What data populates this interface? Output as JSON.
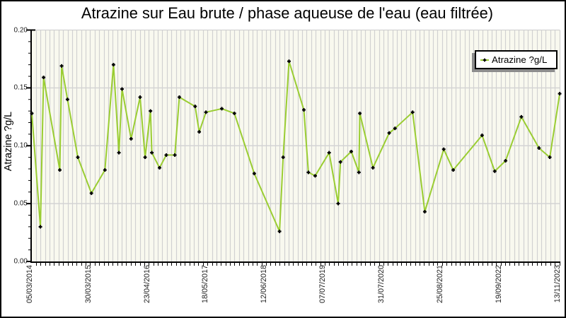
{
  "title": "Atrazine sur Eau brute / phase aqueuse de l'eau (eau filtrée)",
  "legend": {
    "label": "Atrazine ?g/L"
  },
  "colors": {
    "line": "#9acd32",
    "marker": "#000000",
    "plot_background": "#f9f9ef",
    "stripe": "#d1d1d1",
    "gridline": "#d4d4d4",
    "axis": "#000000",
    "legend_shadow": "#8c8c8c"
  },
  "chart_data": {
    "type": "line",
    "title": "Atrazine sur Eau brute / phase aqueuse de l'eau (eau filtrée)",
    "xlabel": "",
    "ylabel": "Atrazine ?g/L",
    "ylim": [
      0.0,
      0.2
    ],
    "y_major_ticks": [
      "0.00",
      "0.05",
      "0.10",
      "0.15",
      "0.20"
    ],
    "y_minor_step": 0.01,
    "grid": "horizontal major + vertical stripe per x slot",
    "legend_position": "top-right inset",
    "series_name": "Atrazine ?g/L",
    "x_slot_count": 117,
    "x_unit": "sample slot index along date axis (0 = 05/03/2014, 117 = 13/11/2023)",
    "x_tick_labels": [
      {
        "slot": 0,
        "label": "05/03/2014"
      },
      {
        "slot": 13,
        "label": "30/03/2015"
      },
      {
        "slot": 26,
        "label": "23/04/2016"
      },
      {
        "slot": 39,
        "label": "18/05/2017"
      },
      {
        "slot": 52,
        "label": "12/06/2018"
      },
      {
        "slot": 65,
        "label": "07/07/2019"
      },
      {
        "slot": 78,
        "label": "31/07/2020"
      },
      {
        "slot": 91,
        "label": "25/08/2021"
      },
      {
        "slot": 104,
        "label": "19/09/2022"
      },
      {
        "slot": 117,
        "label": "13/11/2023"
      }
    ],
    "points": [
      {
        "x": 0,
        "y": 0.128
      },
      {
        "x": 1.9,
        "y": 0.03
      },
      {
        "x": 2.6,
        "y": 0.159
      },
      {
        "x": 6.2,
        "y": 0.079
      },
      {
        "x": 6.6,
        "y": 0.169
      },
      {
        "x": 7.9,
        "y": 0.14
      },
      {
        "x": 10.2,
        "y": 0.09
      },
      {
        "x": 13.2,
        "y": 0.059
      },
      {
        "x": 16.2,
        "y": 0.079
      },
      {
        "x": 18.1,
        "y": 0.17
      },
      {
        "x": 19.3,
        "y": 0.094
      },
      {
        "x": 20,
        "y": 0.149
      },
      {
        "x": 22,
        "y": 0.106
      },
      {
        "x": 24,
        "y": 0.142
      },
      {
        "x": 25.1,
        "y": 0.09
      },
      {
        "x": 26.3,
        "y": 0.13
      },
      {
        "x": 26.6,
        "y": 0.094
      },
      {
        "x": 28.3,
        "y": 0.081
      },
      {
        "x": 29.8,
        "y": 0.092
      },
      {
        "x": 31.7,
        "y": 0.092
      },
      {
        "x": 32.7,
        "y": 0.142
      },
      {
        "x": 36.2,
        "y": 0.134
      },
      {
        "x": 37.1,
        "y": 0.112
      },
      {
        "x": 38.6,
        "y": 0.129
      },
      {
        "x": 42.1,
        "y": 0.132
      },
      {
        "x": 44.9,
        "y": 0.128
      },
      {
        "x": 49.3,
        "y": 0.076
      },
      {
        "x": 54.9,
        "y": 0.026
      },
      {
        "x": 55.7,
        "y": 0.09
      },
      {
        "x": 57,
        "y": 0.173
      },
      {
        "x": 60.3,
        "y": 0.131
      },
      {
        "x": 61.3,
        "y": 0.077
      },
      {
        "x": 62.8,
        "y": 0.074
      },
      {
        "x": 65.9,
        "y": 0.094
      },
      {
        "x": 67.9,
        "y": 0.05
      },
      {
        "x": 68.4,
        "y": 0.086
      },
      {
        "x": 70.8,
        "y": 0.095
      },
      {
        "x": 72.5,
        "y": 0.077
      },
      {
        "x": 72.7,
        "y": 0.128
      },
      {
        "x": 75.6,
        "y": 0.081
      },
      {
        "x": 79.2,
        "y": 0.111
      },
      {
        "x": 80.5,
        "y": 0.115
      },
      {
        "x": 84.4,
        "y": 0.129
      },
      {
        "x": 87.1,
        "y": 0.043
      },
      {
        "x": 91.3,
        "y": 0.097
      },
      {
        "x": 93.4,
        "y": 0.079
      },
      {
        "x": 99.8,
        "y": 0.109
      },
      {
        "x": 102.6,
        "y": 0.078
      },
      {
        "x": 105,
        "y": 0.087
      },
      {
        "x": 108.5,
        "y": 0.125
      },
      {
        "x": 112.4,
        "y": 0.098
      },
      {
        "x": 114.8,
        "y": 0.09
      },
      {
        "x": 117,
        "y": 0.145
      }
    ]
  }
}
